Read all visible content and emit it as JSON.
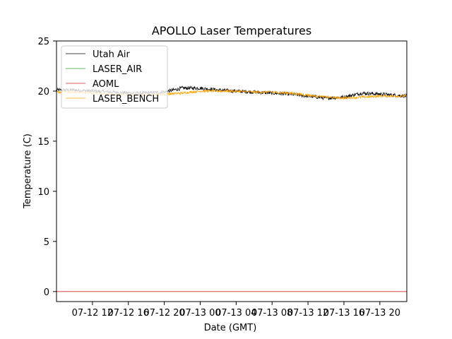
{
  "chart_data": {
    "type": "line",
    "title": "APOLLO Laser Temperatures",
    "xlabel": "Date (GMT)",
    "ylabel": "Temperature (C)",
    "ylim": [
      -1,
      25
    ],
    "xlim_hours": [
      0,
      39
    ],
    "x_tick_labels": [
      "07-12 12",
      "07-12 16",
      "07-12 20",
      "07-13 00",
      "07-13 04",
      "07-13 08",
      "07-13 12",
      "07-13 16",
      "07-13 20"
    ],
    "x_tick_hours": [
      4,
      8,
      12,
      16,
      20,
      24,
      28,
      32,
      36
    ],
    "y_ticks": [
      0,
      5,
      10,
      15,
      20,
      25
    ],
    "legend_position": "upper-left",
    "series": [
      {
        "name": "Utah Air",
        "color": "#000000",
        "noise": 0.18,
        "x": [
          0,
          2,
          4,
          6,
          8,
          10,
          12,
          14,
          16,
          18,
          20,
          22,
          24,
          26,
          28,
          30,
          32,
          34,
          36,
          39
        ],
        "values": [
          20.1,
          20.1,
          20.0,
          19.9,
          19.8,
          19.8,
          19.9,
          20.3,
          20.3,
          20.1,
          20.0,
          19.9,
          19.8,
          19.7,
          19.5,
          19.3,
          19.4,
          19.8,
          19.7,
          19.5
        ]
      },
      {
        "name": "LASER_AIR",
        "color": "#2ca02c",
        "noise": 0,
        "x": [],
        "values": []
      },
      {
        "name": "AOML",
        "color": "#d62728",
        "noise": 0,
        "x": [
          0,
          39
        ],
        "values": [
          0,
          0
        ]
      },
      {
        "name": "LASER_BENCH",
        "color": "#ffa500",
        "noise": 0.12,
        "x": [
          0,
          2,
          4,
          6,
          8,
          10,
          12,
          14,
          16,
          18,
          20,
          22,
          24,
          26,
          28,
          30,
          32,
          34,
          36,
          39
        ],
        "values": [
          19.9,
          19.9,
          19.8,
          19.7,
          19.6,
          19.6,
          19.7,
          19.8,
          20.0,
          20.0,
          20.0,
          19.9,
          19.9,
          19.8,
          19.6,
          19.4,
          19.3,
          19.4,
          19.5,
          19.5
        ]
      }
    ]
  }
}
